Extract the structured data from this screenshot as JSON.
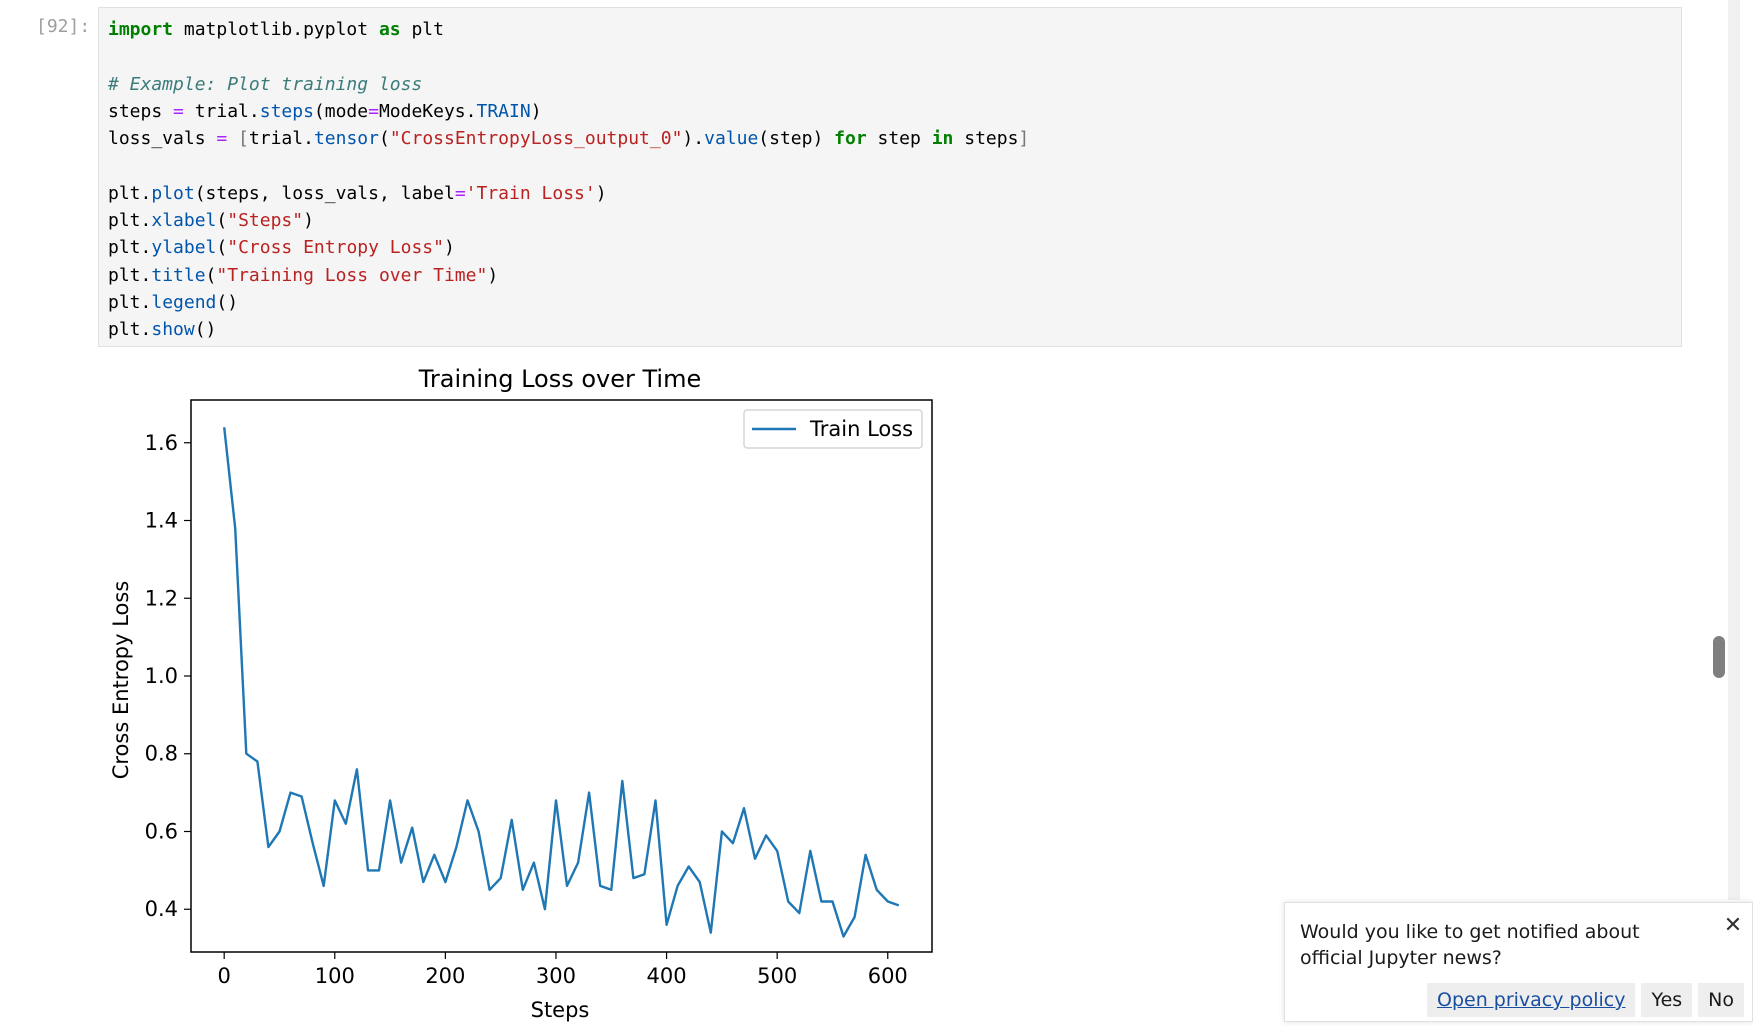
{
  "cell": {
    "prompt": "[92]:",
    "code": {
      "l1_kw1": "import",
      "l1_mid": " matplotlib.pyplot ",
      "l1_kw2": "as",
      "l1_end": " plt",
      "l3_comment": "# Example: Plot training loss",
      "l4_a": "steps ",
      "l4_eq": "=",
      "l4_b": " trial.",
      "l4_fn": "steps",
      "l4_c": "(mode",
      "l4_eq2": "=",
      "l4_d": "ModeKeys.",
      "l4_e": "TRAIN",
      "l4_f": ")",
      "l5_a": "loss_vals ",
      "l5_eq": "=",
      "l5_b1": " [",
      "l5_c": "trial.",
      "l5_fn1": "tensor",
      "l5_d": "(",
      "l5_str": "\"CrossEntropyLoss_output_0\"",
      "l5_e": ").",
      "l5_fn2": "value",
      "l5_f": "(step) ",
      "l5_kw1": "for",
      "l5_g": " step ",
      "l5_kw2": "in",
      "l5_h": " steps",
      "l5_b2": "]",
      "l7_a": "plt.",
      "l7_fn": "plot",
      "l7_b": "(steps, loss_vals, label",
      "l7_eq": "=",
      "l7_str": "'Train Loss'",
      "l7_c": ")",
      "l8_a": "plt.",
      "l8_fn": "xlabel",
      "l8_b": "(",
      "l8_str": "\"Steps\"",
      "l8_c": ")",
      "l9_a": "plt.",
      "l9_fn": "ylabel",
      "l9_b": "(",
      "l9_str": "\"Cross Entropy Loss\"",
      "l9_c": ")",
      "l10_a": "plt.",
      "l10_fn": "title",
      "l10_b": "(",
      "l10_str": "\"Training Loss over Time\"",
      "l10_c": ")",
      "l11_a": "plt.",
      "l11_fn": "legend",
      "l11_b": "()",
      "l12_a": "plt.",
      "l12_fn": "show",
      "l12_b": "()"
    }
  },
  "chart_data": {
    "type": "line",
    "title": "Training Loss over Time",
    "xlabel": "Steps",
    "ylabel": "Cross Entropy Loss",
    "xlim": [
      -30,
      640
    ],
    "ylim": [
      0.29,
      1.71
    ],
    "xticks": [
      0,
      100,
      200,
      300,
      400,
      500,
      600
    ],
    "yticks": [
      0.4,
      0.6,
      0.8,
      1.0,
      1.2,
      1.4,
      1.6
    ],
    "ytick_labels": [
      "0.4",
      "0.6",
      "0.8",
      "1.0",
      "1.2",
      "1.4",
      "1.6"
    ],
    "grid": false,
    "legend": "top-right",
    "series": [
      {
        "name": "Train Loss",
        "color": "#1f77b4",
        "x": [
          0,
          10,
          20,
          30,
          40,
          50,
          60,
          70,
          80,
          90,
          100,
          110,
          120,
          130,
          140,
          150,
          160,
          170,
          180,
          190,
          200,
          210,
          220,
          230,
          240,
          250,
          260,
          270,
          280,
          290,
          300,
          310,
          320,
          330,
          340,
          350,
          360,
          370,
          380,
          390,
          400,
          410,
          420,
          430,
          440,
          450,
          460,
          470,
          480,
          490,
          500,
          510,
          520,
          530,
          540,
          550,
          560,
          570,
          580,
          590,
          600,
          610
        ],
        "y": [
          1.64,
          1.38,
          0.8,
          0.78,
          0.56,
          0.6,
          0.7,
          0.69,
          0.57,
          0.46,
          0.68,
          0.62,
          0.76,
          0.5,
          0.5,
          0.68,
          0.52,
          0.61,
          0.47,
          0.54,
          0.47,
          0.56,
          0.68,
          0.6,
          0.45,
          0.48,
          0.63,
          0.45,
          0.52,
          0.4,
          0.68,
          0.46,
          0.52,
          0.7,
          0.46,
          0.45,
          0.73,
          0.48,
          0.49,
          0.68,
          0.36,
          0.46,
          0.51,
          0.47,
          0.34,
          0.6,
          0.57,
          0.66,
          0.53,
          0.59,
          0.55,
          0.42,
          0.39,
          0.55,
          0.42,
          0.42,
          0.33,
          0.38,
          0.54,
          0.45,
          0.42,
          0.41
        ]
      }
    ]
  },
  "toast": {
    "message": "Would you like to get notified about official Jupyter news?",
    "close_icon": "close-icon",
    "privacy_label": "Open privacy policy",
    "yes_label": "Yes",
    "no_label": "No"
  }
}
